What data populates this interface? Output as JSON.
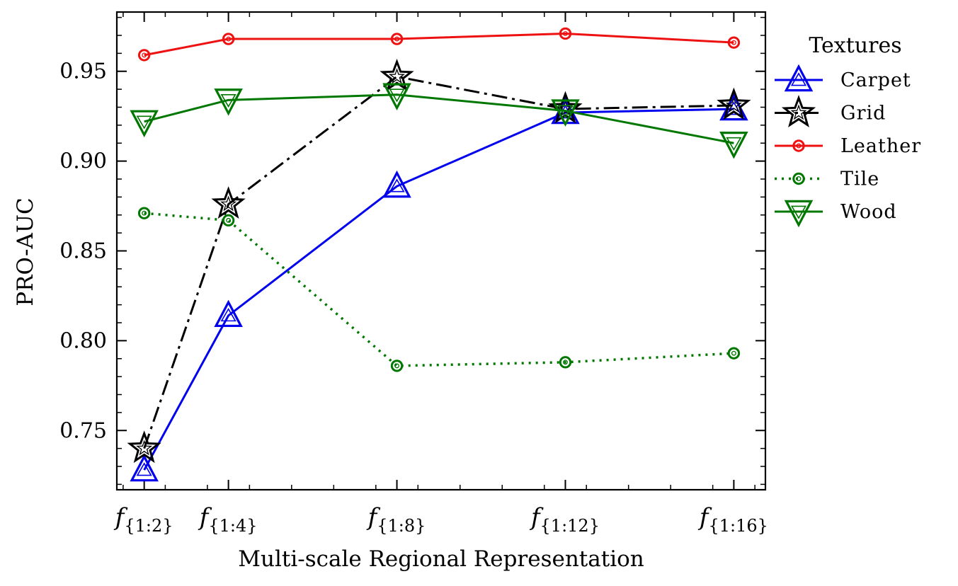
{
  "chart_data": {
    "type": "line",
    "xlabel": "Multi-scale Regional Representation",
    "ylabel": "PRO-AUC",
    "x": [
      2,
      4,
      8,
      12,
      16
    ],
    "xtick_labels": [
      {
        "base": "f",
        "sub": "{1:2}"
      },
      {
        "base": "f",
        "sub": "{1:4}"
      },
      {
        "base": "f",
        "sub": "{1:8}"
      },
      {
        "base": "f",
        "sub": "{1:12}"
      },
      {
        "base": "f",
        "sub": "{1:16}"
      }
    ],
    "xlim": [
      1.35,
      16.75
    ],
    "ylim": [
      0.717,
      0.983
    ],
    "yticks": [
      0.75,
      0.8,
      0.85,
      0.9,
      0.95
    ],
    "ytick_labels": [
      "0.75",
      "0.80",
      "0.85",
      "0.90",
      "0.95"
    ],
    "legend": {
      "title": "Textures",
      "placement": "right-outside-top"
    },
    "series": [
      {
        "name": "Carpet",
        "color": "#0000ee",
        "line_style": "solid",
        "marker": "triangle-up",
        "values": [
          0.728,
          0.814,
          0.886,
          0.927,
          0.929
        ]
      },
      {
        "name": "Grid",
        "color": "#000000",
        "line_style": "dash-dot",
        "marker": "star",
        "values": [
          0.74,
          0.876,
          0.947,
          0.929,
          0.931
        ]
      },
      {
        "name": "Leather",
        "color": "#ee1111",
        "line_style": "solid",
        "marker": "circle",
        "values": [
          0.959,
          0.968,
          0.968,
          0.971,
          0.966
        ]
      },
      {
        "name": "Tile",
        "color": "#007700",
        "line_style": "dotted",
        "marker": "circle",
        "values": [
          0.871,
          0.867,
          0.786,
          0.788,
          0.793
        ]
      },
      {
        "name": "Wood",
        "color": "#007700",
        "line_style": "solid",
        "marker": "triangle-down",
        "values": [
          0.922,
          0.934,
          0.937,
          0.928,
          0.91
        ]
      }
    ]
  }
}
